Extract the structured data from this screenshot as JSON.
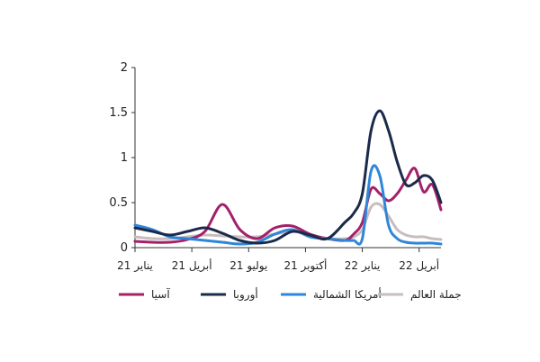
{
  "chart_data": {
    "type": "line",
    "title": "",
    "xlabel": "",
    "ylabel": "",
    "ylim": [
      0,
      2
    ],
    "y_ticks": [
      "0",
      "0.5",
      "1",
      "1.5",
      "2"
    ],
    "y_tick_values": [
      0,
      0.5,
      1,
      1.5,
      2
    ],
    "x_tick_labels": [
      "يناير 21",
      "أبريل 21",
      "يوليو 21",
      "أكتوبر 21",
      "يناير 22",
      "أبريل 22"
    ],
    "x_tick_weeks": [
      0,
      13,
      26,
      39,
      52,
      65
    ],
    "grid": false,
    "legend_position": "bottom",
    "x_weeks": [
      0,
      4,
      8,
      12,
      16,
      20,
      24,
      28,
      32,
      36,
      40,
      44,
      48,
      50,
      52,
      54,
      56,
      58,
      60,
      62,
      64,
      66,
      68,
      70
    ],
    "series": [
      {
        "name": "آسيا",
        "color": "#a3216a",
        "values": [
          0.07,
          0.06,
          0.06,
          0.09,
          0.18,
          0.48,
          0.2,
          0.1,
          0.22,
          0.24,
          0.15,
          0.1,
          0.08,
          0.15,
          0.28,
          0.65,
          0.6,
          0.52,
          0.6,
          0.75,
          0.88,
          0.62,
          0.7,
          0.42
        ]
      },
      {
        "name": "أوروبا",
        "color": "#1b2a4a",
        "values": [
          0.22,
          0.18,
          0.14,
          0.18,
          0.22,
          0.16,
          0.08,
          0.05,
          0.08,
          0.18,
          0.14,
          0.1,
          0.28,
          0.38,
          0.6,
          1.3,
          1.52,
          1.3,
          0.95,
          0.7,
          0.72,
          0.8,
          0.75,
          0.5
        ]
      },
      {
        "name": "أمريكا الشمالية",
        "color": "#2f86d8",
        "values": [
          0.25,
          0.2,
          0.12,
          0.1,
          0.08,
          0.06,
          0.04,
          0.06,
          0.15,
          0.2,
          0.12,
          0.1,
          0.08,
          0.08,
          0.1,
          0.85,
          0.8,
          0.25,
          0.1,
          0.06,
          0.05,
          0.05,
          0.05,
          0.04
        ]
      },
      {
        "name": "جملة العالم",
        "color": "#c9bcbc",
        "values": [
          0.12,
          0.1,
          0.1,
          0.12,
          0.14,
          0.13,
          0.12,
          0.12,
          0.15,
          0.18,
          0.14,
          0.1,
          0.1,
          0.12,
          0.2,
          0.45,
          0.48,
          0.35,
          0.2,
          0.14,
          0.12,
          0.12,
          0.1,
          0.09
        ]
      }
    ]
  }
}
